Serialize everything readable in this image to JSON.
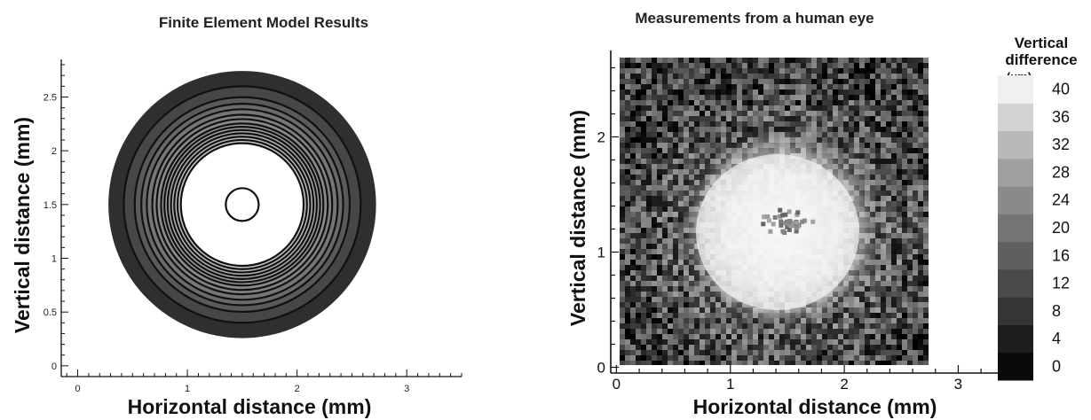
{
  "chart_data": [
    {
      "type": "contour",
      "title": "Finite Element Model Results",
      "xlabel": "Horizontal distance (mm)",
      "ylabel": "Vertical distance (mm)",
      "xlim": [
        -0.15,
        3.5
      ],
      "ylim": [
        -0.1,
        2.85
      ],
      "xticks": [
        "0",
        "1",
        "2",
        "3"
      ],
      "yticks": [
        "0",
        "0.5",
        "1",
        "1.5",
        "2",
        "2.5"
      ],
      "center": [
        1.5,
        1.5
      ],
      "contour_radii_mm": [
        1.22,
        1.08,
        0.98,
        0.92,
        0.87,
        0.82,
        0.78,
        0.74,
        0.71,
        0.68,
        0.65,
        0.62,
        0.59,
        0.56,
        0.15
      ],
      "fill_colors": [
        "#2f2f2f",
        "#474747",
        "#5a5a5a",
        "#6a6a6a",
        "#767676",
        "#808080",
        "#8a8a8a",
        "#949494",
        "#9e9e9e",
        "#a8a8a8",
        "#b2b2b2",
        "#bcbcbc",
        "#c6c6c6",
        "#ffffff",
        "#ffffff"
      ]
    },
    {
      "type": "heatmap",
      "title": "Measurements from a human eye",
      "xlabel": "Horizontal distance (mm)",
      "ylabel": "Vertical distance (mm)",
      "xlim": [
        -0.05,
        3.55
      ],
      "ylim": [
        -0.05,
        2.75
      ],
      "xticks": [
        "0",
        "1",
        "2",
        "3"
      ],
      "yticks": [
        "0",
        "1",
        "2"
      ],
      "image_extent": {
        "x": [
          0,
          2.7
        ],
        "y": [
          0,
          2.7
        ]
      },
      "bright_center": [
        1.45,
        1.2
      ],
      "colorbar": {
        "title_lines": [
          "Vertical",
          "difference"
        ],
        "unit": "(um)",
        "levels": [
          0,
          4,
          8,
          12,
          16,
          20,
          24,
          28,
          32,
          36,
          40
        ],
        "colors": [
          "#0a0a0a",
          "#1e1e1e",
          "#353535",
          "#4a4a4a",
          "#5f5f5f",
          "#747474",
          "#8a8a8a",
          "#a0a0a0",
          "#b8b8b8",
          "#d2d2d2",
          "#f0f0f0"
        ]
      }
    }
  ]
}
